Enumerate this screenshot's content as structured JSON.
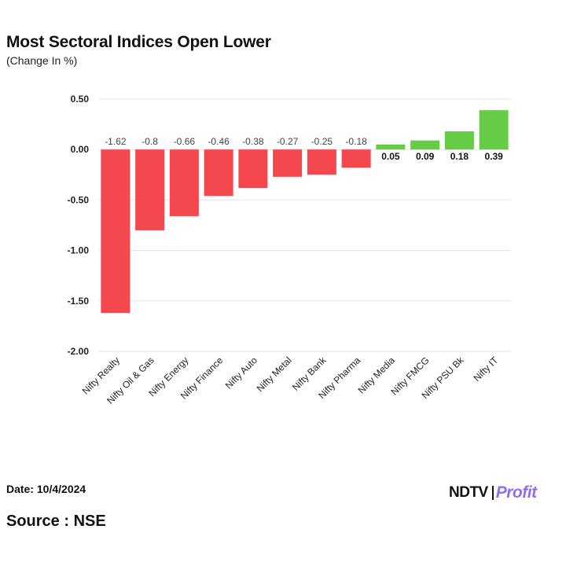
{
  "header": {
    "title": "Most Sectoral Indices Open Lower",
    "subtitle": "(Change In %)"
  },
  "footer": {
    "date": "Date: 10/4/2024",
    "source": "Source : NSE",
    "logo_brand": "NDTV",
    "logo_product": "Profit"
  },
  "colors": {
    "negative": "#f4474e",
    "positive": "#66cc46",
    "grid": "#e3e3e3"
  },
  "chart_data": {
    "type": "bar",
    "categories": [
      "Nifty Realty",
      "Nifty Oil & Gas",
      "Nifty Energy",
      "Nifty Finance",
      "Nifty Auto",
      "Nifty Metal",
      "Nifty Bank",
      "Nifty Pharma",
      "Nifty Media",
      "Nifty FMCG",
      "Nifty PSU Bk",
      "Nifty IT"
    ],
    "values": [
      -1.62,
      -0.8,
      -0.66,
      -0.46,
      -0.38,
      -0.27,
      -0.25,
      -0.18,
      0.05,
      0.09,
      0.18,
      0.39
    ],
    "data_labels": [
      "-1.62",
      "-0.8",
      "-0.66",
      "-0.46",
      "-0.38",
      "-0.27",
      "-0.25",
      "-0.18",
      "0.05",
      "0.09",
      "0.18",
      "0.39"
    ],
    "title": "Most Sectoral Indices Open Lower",
    "subtitle": "(Change In %)",
    "ylim": [
      -2.0,
      0.5
    ],
    "yticks": [
      0.5,
      0.0,
      -0.5,
      -1.0,
      -1.5,
      -2.0
    ],
    "ytick_labels": [
      "0.50",
      "0.00",
      "-0.50",
      "-1.00",
      "-1.50",
      "-2.00"
    ],
    "grid": true,
    "legend": "none"
  }
}
